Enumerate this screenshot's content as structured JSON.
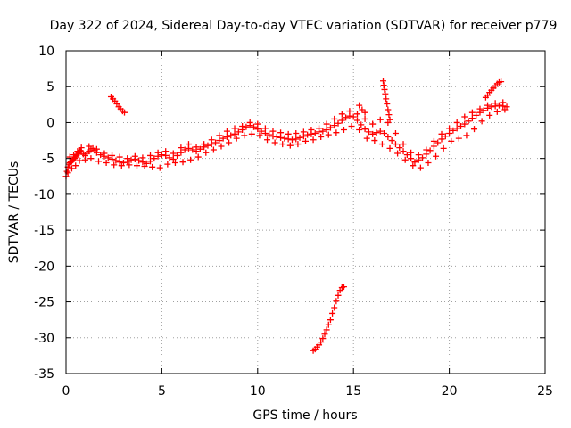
{
  "chart_data": {
    "type": "scatter",
    "title": "Day 322 of 2024, Sidereal Day-to-day VTEC variation (SDTVAR) for receiver p779",
    "xlabel": "GPS time / hours",
    "ylabel": "SDTVAR / TECUs",
    "xlim": [
      0,
      25
    ],
    "ylim": [
      -35,
      10
    ],
    "xticks": [
      0,
      5,
      10,
      15,
      20,
      25
    ],
    "yticks": [
      10,
      5,
      0,
      -5,
      -10,
      -15,
      -20,
      -25,
      -30,
      -35
    ],
    "x_tick_labels": [
      "0",
      "5",
      "10",
      "15",
      "20",
      "25"
    ],
    "y_tick_labels": [
      "10",
      "5",
      "0",
      "-5",
      "-10",
      "-15",
      "-20",
      "-25",
      "-30",
      "-35"
    ],
    "grid": true,
    "marker": "+",
    "color": "#ff0000",
    "series": [
      {
        "name": "main-trace",
        "points": [
          [
            0.0,
            -7.5
          ],
          [
            0.05,
            -6.8
          ],
          [
            0.1,
            -6.2
          ],
          [
            0.15,
            -5.8
          ],
          [
            0.2,
            -5.6
          ],
          [
            0.25,
            -5.5
          ],
          [
            0.3,
            -5.4
          ],
          [
            0.35,
            -5.2
          ],
          [
            0.4,
            -5.0
          ],
          [
            0.45,
            -5.0
          ],
          [
            0.5,
            -4.8
          ],
          [
            0.55,
            -4.6
          ],
          [
            0.6,
            -4.4
          ],
          [
            0.65,
            -4.2
          ],
          [
            0.7,
            -4.0
          ],
          [
            0.75,
            -3.9
          ],
          [
            0.8,
            -4.1
          ],
          [
            0.9,
            -4.4
          ],
          [
            1.0,
            -4.6
          ],
          [
            1.1,
            -4.3
          ],
          [
            1.2,
            -4.0
          ],
          [
            1.3,
            -3.8
          ],
          [
            1.4,
            -3.6
          ],
          [
            1.5,
            -3.9
          ],
          [
            1.6,
            -4.2
          ],
          [
            1.8,
            -4.5
          ],
          [
            2.0,
            -4.7
          ],
          [
            2.2,
            -4.9
          ],
          [
            2.4,
            -5.1
          ],
          [
            2.6,
            -5.3
          ],
          [
            2.8,
            -5.5
          ],
          [
            3.0,
            -5.6
          ],
          [
            3.2,
            -5.4
          ],
          [
            3.4,
            -5.2
          ],
          [
            3.6,
            -5.1
          ],
          [
            3.8,
            -5.3
          ],
          [
            4.0,
            -5.5
          ],
          [
            4.2,
            -5.7
          ],
          [
            4.4,
            -5.4
          ],
          [
            4.6,
            -5.0
          ],
          [
            4.8,
            -4.7
          ],
          [
            5.0,
            -4.5
          ],
          [
            5.2,
            -4.6
          ],
          [
            5.4,
            -4.9
          ],
          [
            5.6,
            -5.1
          ],
          [
            5.8,
            -4.6
          ],
          [
            6.0,
            -4.2
          ],
          [
            6.2,
            -3.8
          ],
          [
            6.4,
            -3.6
          ],
          [
            6.6,
            -3.8
          ],
          [
            6.8,
            -4.0
          ],
          [
            7.0,
            -3.7
          ],
          [
            7.2,
            -3.4
          ],
          [
            7.4,
            -3.2
          ],
          [
            7.6,
            -3.0
          ],
          [
            7.8,
            -2.8
          ],
          [
            8.0,
            -2.5
          ],
          [
            8.2,
            -2.2
          ],
          [
            8.4,
            -2.0
          ],
          [
            8.6,
            -1.8
          ],
          [
            8.8,
            -1.6
          ],
          [
            9.0,
            -1.3
          ],
          [
            9.2,
            -1.0
          ],
          [
            9.4,
            -0.6
          ],
          [
            9.6,
            -0.4
          ],
          [
            9.8,
            -0.6
          ],
          [
            10.0,
            -0.9
          ],
          [
            10.2,
            -1.2
          ],
          [
            10.4,
            -1.5
          ],
          [
            10.6,
            -1.7
          ],
          [
            10.8,
            -1.9
          ],
          [
            11.0,
            -2.0
          ],
          [
            11.2,
            -2.1
          ],
          [
            11.4,
            -2.2
          ],
          [
            11.6,
            -2.3
          ],
          [
            11.8,
            -2.4
          ],
          [
            12.0,
            -2.3
          ],
          [
            12.2,
            -2.1
          ],
          [
            12.4,
            -1.9
          ],
          [
            12.6,
            -1.7
          ],
          [
            12.8,
            -1.6
          ],
          [
            13.0,
            -1.5
          ],
          [
            13.2,
            -1.3
          ],
          [
            13.4,
            -1.2
          ],
          [
            13.6,
            -1.0
          ],
          [
            13.8,
            -0.7
          ],
          [
            14.0,
            -0.4
          ],
          [
            14.2,
            -0.1
          ],
          [
            14.4,
            0.3
          ],
          [
            14.6,
            0.7
          ],
          [
            14.8,
            0.9
          ],
          [
            15.0,
            0.8
          ],
          [
            15.2,
            0.3
          ],
          [
            15.4,
            -0.3
          ],
          [
            15.6,
            -0.9
          ],
          [
            15.8,
            -1.3
          ],
          [
            16.0,
            -1.6
          ],
          [
            16.2,
            -1.4
          ],
          [
            16.4,
            -1.2
          ],
          [
            16.6,
            -1.5
          ],
          [
            16.8,
            -2.0
          ],
          [
            17.0,
            -2.5
          ],
          [
            17.2,
            -3.0
          ],
          [
            17.4,
            -3.5
          ],
          [
            17.6,
            -4.0
          ],
          [
            17.8,
            -4.5
          ],
          [
            18.0,
            -5.0
          ],
          [
            18.2,
            -5.5
          ],
          [
            18.4,
            -5.2
          ],
          [
            18.6,
            -4.9
          ],
          [
            18.8,
            -4.4
          ],
          [
            19.0,
            -3.9
          ],
          [
            19.2,
            -3.3
          ],
          [
            19.4,
            -2.8
          ],
          [
            19.6,
            -2.3
          ],
          [
            19.8,
            -1.9
          ],
          [
            20.0,
            -1.5
          ],
          [
            20.2,
            -1.1
          ],
          [
            20.4,
            -0.8
          ],
          [
            20.6,
            -0.5
          ],
          [
            20.8,
            -0.2
          ],
          [
            21.0,
            0.2
          ],
          [
            21.2,
            0.6
          ],
          [
            21.4,
            1.0
          ],
          [
            21.6,
            1.4
          ],
          [
            21.8,
            1.7
          ],
          [
            22.0,
            2.0
          ],
          [
            22.2,
            2.2
          ],
          [
            22.4,
            2.3
          ],
          [
            22.6,
            2.4
          ],
          [
            22.8,
            2.3
          ],
          [
            23.0,
            2.2
          ]
        ]
      },
      {
        "name": "band-low",
        "points": [
          [
            0.1,
            -7.0
          ],
          [
            0.3,
            -6.4
          ],
          [
            0.5,
            -6.0
          ],
          [
            0.7,
            -5.3
          ],
          [
            1.0,
            -5.2
          ],
          [
            1.3,
            -5.0
          ],
          [
            1.7,
            -5.4
          ],
          [
            2.1,
            -5.6
          ],
          [
            2.5,
            -5.9
          ],
          [
            2.9,
            -6.0
          ],
          [
            3.3,
            -5.9
          ],
          [
            3.7,
            -6.0
          ],
          [
            4.1,
            -6.1
          ],
          [
            4.5,
            -6.2
          ],
          [
            4.9,
            -6.3
          ],
          [
            5.3,
            -5.8
          ],
          [
            5.7,
            -5.6
          ],
          [
            6.1,
            -5.5
          ],
          [
            6.5,
            -5.2
          ],
          [
            6.9,
            -4.8
          ],
          [
            7.3,
            -4.2
          ],
          [
            7.7,
            -3.8
          ],
          [
            8.1,
            -3.3
          ],
          [
            8.5,
            -2.8
          ],
          [
            8.9,
            -2.2
          ],
          [
            9.3,
            -1.8
          ],
          [
            9.7,
            -1.6
          ],
          [
            10.1,
            -1.8
          ],
          [
            10.5,
            -2.4
          ],
          [
            10.9,
            -2.8
          ],
          [
            11.3,
            -3.0
          ],
          [
            11.7,
            -3.2
          ],
          [
            12.1,
            -3.0
          ],
          [
            12.5,
            -2.6
          ],
          [
            12.9,
            -2.4
          ],
          [
            13.3,
            -2.0
          ],
          [
            13.7,
            -1.7
          ],
          [
            14.1,
            -1.4
          ],
          [
            14.5,
            -1.0
          ],
          [
            14.9,
            -0.5
          ],
          [
            15.3,
            -1.0
          ],
          [
            15.7,
            -2.2
          ],
          [
            16.1,
            -2.5
          ],
          [
            16.5,
            -3.0
          ],
          [
            16.9,
            -3.6
          ],
          [
            17.3,
            -4.3
          ],
          [
            17.7,
            -5.2
          ],
          [
            18.1,
            -6.0
          ],
          [
            18.5,
            -6.3
          ],
          [
            18.9,
            -5.6
          ],
          [
            19.3,
            -4.7
          ],
          [
            19.7,
            -3.6
          ],
          [
            20.1,
            -2.6
          ],
          [
            20.5,
            -2.2
          ],
          [
            20.9,
            -1.8
          ],
          [
            21.3,
            -0.9
          ],
          [
            21.7,
            0.2
          ],
          [
            22.1,
            1.0
          ],
          [
            22.5,
            1.5
          ],
          [
            22.9,
            1.8
          ]
        ]
      },
      {
        "name": "band-high",
        "points": [
          [
            0.2,
            -4.8
          ],
          [
            0.4,
            -4.5
          ],
          [
            0.6,
            -4.0
          ],
          [
            0.8,
            -3.5
          ],
          [
            1.2,
            -3.3
          ],
          [
            1.6,
            -3.7
          ],
          [
            2.0,
            -4.3
          ],
          [
            2.4,
            -4.6
          ],
          [
            2.8,
            -4.8
          ],
          [
            3.2,
            -5.0
          ],
          [
            3.6,
            -4.7
          ],
          [
            4.0,
            -4.9
          ],
          [
            4.4,
            -4.6
          ],
          [
            4.8,
            -4.2
          ],
          [
            5.2,
            -4.0
          ],
          [
            5.6,
            -4.3
          ],
          [
            6.0,
            -3.5
          ],
          [
            6.4,
            -3.0
          ],
          [
            6.8,
            -3.4
          ],
          [
            7.2,
            -3.0
          ],
          [
            7.6,
            -2.4
          ],
          [
            8.0,
            -1.8
          ],
          [
            8.4,
            -1.2
          ],
          [
            8.8,
            -0.8
          ],
          [
            9.2,
            -0.5
          ],
          [
            9.6,
            0.0
          ],
          [
            10.0,
            -0.2
          ],
          [
            10.4,
            -0.8
          ],
          [
            10.8,
            -1.2
          ],
          [
            11.2,
            -1.4
          ],
          [
            11.6,
            -1.6
          ],
          [
            12.0,
            -1.5
          ],
          [
            12.4,
            -1.3
          ],
          [
            12.8,
            -1.0
          ],
          [
            13.2,
            -0.8
          ],
          [
            13.6,
            -0.2
          ],
          [
            14.0,
            0.5
          ],
          [
            14.4,
            1.2
          ],
          [
            14.8,
            1.6
          ],
          [
            15.2,
            1.2
          ],
          [
            15.6,
            0.5
          ],
          [
            16.0,
            -0.2
          ],
          [
            16.4,
            0.4
          ],
          [
            16.8,
            0.0
          ],
          [
            17.2,
            -1.5
          ],
          [
            17.6,
            -3.0
          ],
          [
            18.0,
            -4.2
          ],
          [
            18.4,
            -4.5
          ],
          [
            18.8,
            -3.8
          ],
          [
            19.2,
            -2.6
          ],
          [
            19.6,
            -1.6
          ],
          [
            20.0,
            -0.8
          ],
          [
            20.4,
            0.0
          ],
          [
            20.8,
            0.8
          ],
          [
            21.2,
            1.4
          ],
          [
            21.6,
            1.9
          ],
          [
            22.0,
            2.4
          ],
          [
            22.4,
            2.7
          ],
          [
            22.8,
            2.8
          ]
        ]
      },
      {
        "name": "arc-early",
        "points": [
          [
            2.35,
            3.6
          ],
          [
            2.45,
            3.3
          ],
          [
            2.55,
            3.0
          ],
          [
            2.65,
            2.6
          ],
          [
            2.75,
            2.2
          ],
          [
            2.85,
            1.9
          ],
          [
            2.95,
            1.6
          ],
          [
            3.05,
            1.4
          ]
        ]
      },
      {
        "name": "spike-16h",
        "points": [
          [
            16.55,
            5.8
          ],
          [
            16.58,
            5.2
          ],
          [
            16.62,
            4.6
          ],
          [
            16.66,
            4.0
          ],
          [
            16.7,
            3.3
          ],
          [
            16.75,
            2.6
          ],
          [
            16.8,
            1.8
          ],
          [
            16.85,
            1.1
          ],
          [
            16.9,
            0.4
          ]
        ]
      },
      {
        "name": "spike-15h",
        "points": [
          [
            15.3,
            2.4
          ],
          [
            15.45,
            1.8
          ],
          [
            15.6,
            1.4
          ]
        ]
      },
      {
        "name": "rise-22h",
        "points": [
          [
            21.9,
            3.5
          ],
          [
            22.0,
            3.8
          ],
          [
            22.1,
            4.2
          ],
          [
            22.2,
            4.5
          ],
          [
            22.3,
            4.8
          ],
          [
            22.4,
            5.1
          ],
          [
            22.5,
            5.4
          ],
          [
            22.6,
            5.6
          ],
          [
            22.7,
            5.7
          ]
        ]
      },
      {
        "name": "plunge-13h",
        "points": [
          [
            12.9,
            -31.8
          ],
          [
            13.0,
            -31.6
          ],
          [
            13.1,
            -31.3
          ],
          [
            13.2,
            -31.0
          ],
          [
            13.3,
            -30.6
          ],
          [
            13.4,
            -30.1
          ],
          [
            13.5,
            -29.5
          ],
          [
            13.6,
            -28.9
          ],
          [
            13.7,
            -28.2
          ],
          [
            13.8,
            -27.5
          ],
          [
            13.9,
            -26.6
          ],
          [
            14.0,
            -25.8
          ],
          [
            14.1,
            -24.9
          ],
          [
            14.2,
            -24.1
          ],
          [
            14.3,
            -23.4
          ],
          [
            14.4,
            -23.0
          ],
          [
            14.5,
            -22.9
          ]
        ]
      }
    ]
  }
}
